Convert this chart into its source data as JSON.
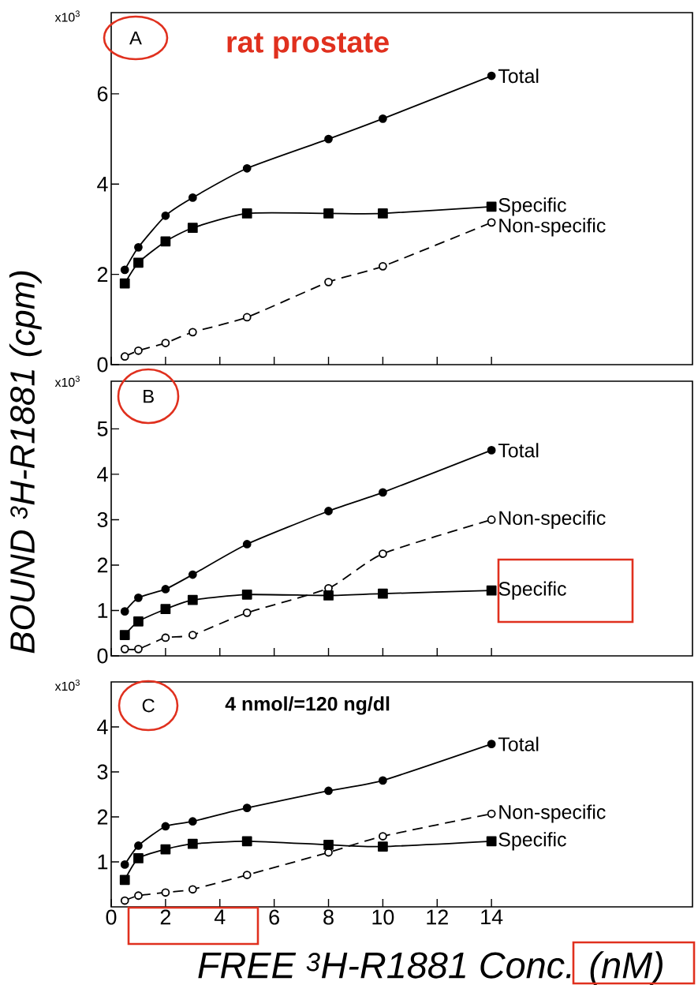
{
  "chart_data": [
    {
      "type": "line",
      "x": [
        0.5,
        1,
        2,
        3,
        5,
        8,
        10,
        14
      ],
      "xlim": [
        0,
        21.4
      ],
      "xticks": [
        0,
        2,
        4,
        6,
        8,
        10,
        12,
        14
      ],
      "ylim": [
        0,
        7.8
      ],
      "yticks": [
        0,
        2,
        4,
        6
      ],
      "tick_labels": "y",
      "annotations": [
        "A",
        "rat prostate",
        "x10$^{3}$"
      ],
      "series": [
        {
          "name": "Total",
          "color": "#000000",
          "marker": "circle",
          "line_style": "solid",
          "values": [
            2.1,
            2.6,
            3.3,
            3.7,
            4.35,
            5.0,
            5.45,
            6.4
          ]
        },
        {
          "name": "Specific",
          "color": "#000000",
          "marker": "square",
          "line_style": "solid",
          "values": [
            1.8,
            2.26,
            2.73,
            3.03,
            3.35,
            3.35,
            3.35,
            3.5
          ]
        },
        {
          "name": "Non-specific",
          "color": "#000000",
          "marker": "circle",
          "line_style": "dashed",
          "values": [
            0.18,
            0.31,
            0.48,
            0.72,
            1.05,
            1.83,
            2.18,
            3.15
          ]
        }
      ]
    },
    {
      "type": "line",
      "x": [
        0.5,
        1,
        2,
        3,
        5,
        8,
        10,
        14
      ],
      "xlim": [
        0,
        21.4
      ],
      "xticks": [
        0,
        2,
        4,
        6,
        8,
        10,
        12,
        14
      ],
      "ylim": [
        0,
        6.05
      ],
      "yticks": [
        0,
        1,
        2,
        3,
        4,
        5
      ],
      "tick_labels": "y",
      "ylabel": "BOUND $^{3}$H-R1881 (cpm)",
      "annotations": [
        "B",
        "x10$^{3}$"
      ],
      "series": [
        {
          "name": "Total",
          "color": "#000000",
          "marker": "circle",
          "line_style": "solid",
          "values": [
            0.98,
            1.28,
            1.47,
            1.79,
            2.46,
            3.19,
            3.6,
            4.53
          ]
        },
        {
          "name": "Non-specific",
          "color": "#000000",
          "marker": "circle",
          "line_style": "dashed",
          "values": [
            0.15,
            0.15,
            0.4,
            0.46,
            0.95,
            1.49,
            2.25,
            3.0
          ]
        },
        {
          "name": "Specific",
          "color": "#000000",
          "marker": "square",
          "line_style": "solid",
          "values": [
            0.46,
            0.76,
            1.03,
            1.23,
            1.35,
            1.33,
            1.37,
            1.44
          ]
        }
      ]
    },
    {
      "type": "line",
      "x": [
        0.5,
        1,
        2,
        3,
        5,
        8,
        10,
        14
      ],
      "xlim": [
        0,
        21.4
      ],
      "xticks": [
        0,
        2,
        4,
        6,
        8,
        10,
        12,
        14
      ],
      "ylim": [
        0,
        5.0
      ],
      "yticks": [
        1,
        2,
        3,
        4
      ],
      "xlabel": "FREE $^{3}$H-R1881 Conc. (nM)",
      "annotations": [
        "C",
        "4 nmol/=120 ng/dl",
        "x10$^{3}$"
      ],
      "series": [
        {
          "name": "Total",
          "color": "#000000",
          "marker": "circle",
          "line_style": "solid",
          "values": [
            0.94,
            1.36,
            1.79,
            1.9,
            2.2,
            2.58,
            2.81,
            3.62
          ]
        },
        {
          "name": "Non-specific",
          "color": "#000000",
          "marker": "circle",
          "line_style": "dashed",
          "values": [
            0.14,
            0.25,
            0.32,
            0.39,
            0.71,
            1.21,
            1.57,
            2.07
          ]
        },
        {
          "name": "Specific",
          "color": "#000000",
          "marker": "square",
          "line_style": "solid",
          "values": [
            0.6,
            1.08,
            1.28,
            1.4,
            1.46,
            1.38,
            1.34,
            1.46
          ]
        }
      ]
    }
  ]
}
